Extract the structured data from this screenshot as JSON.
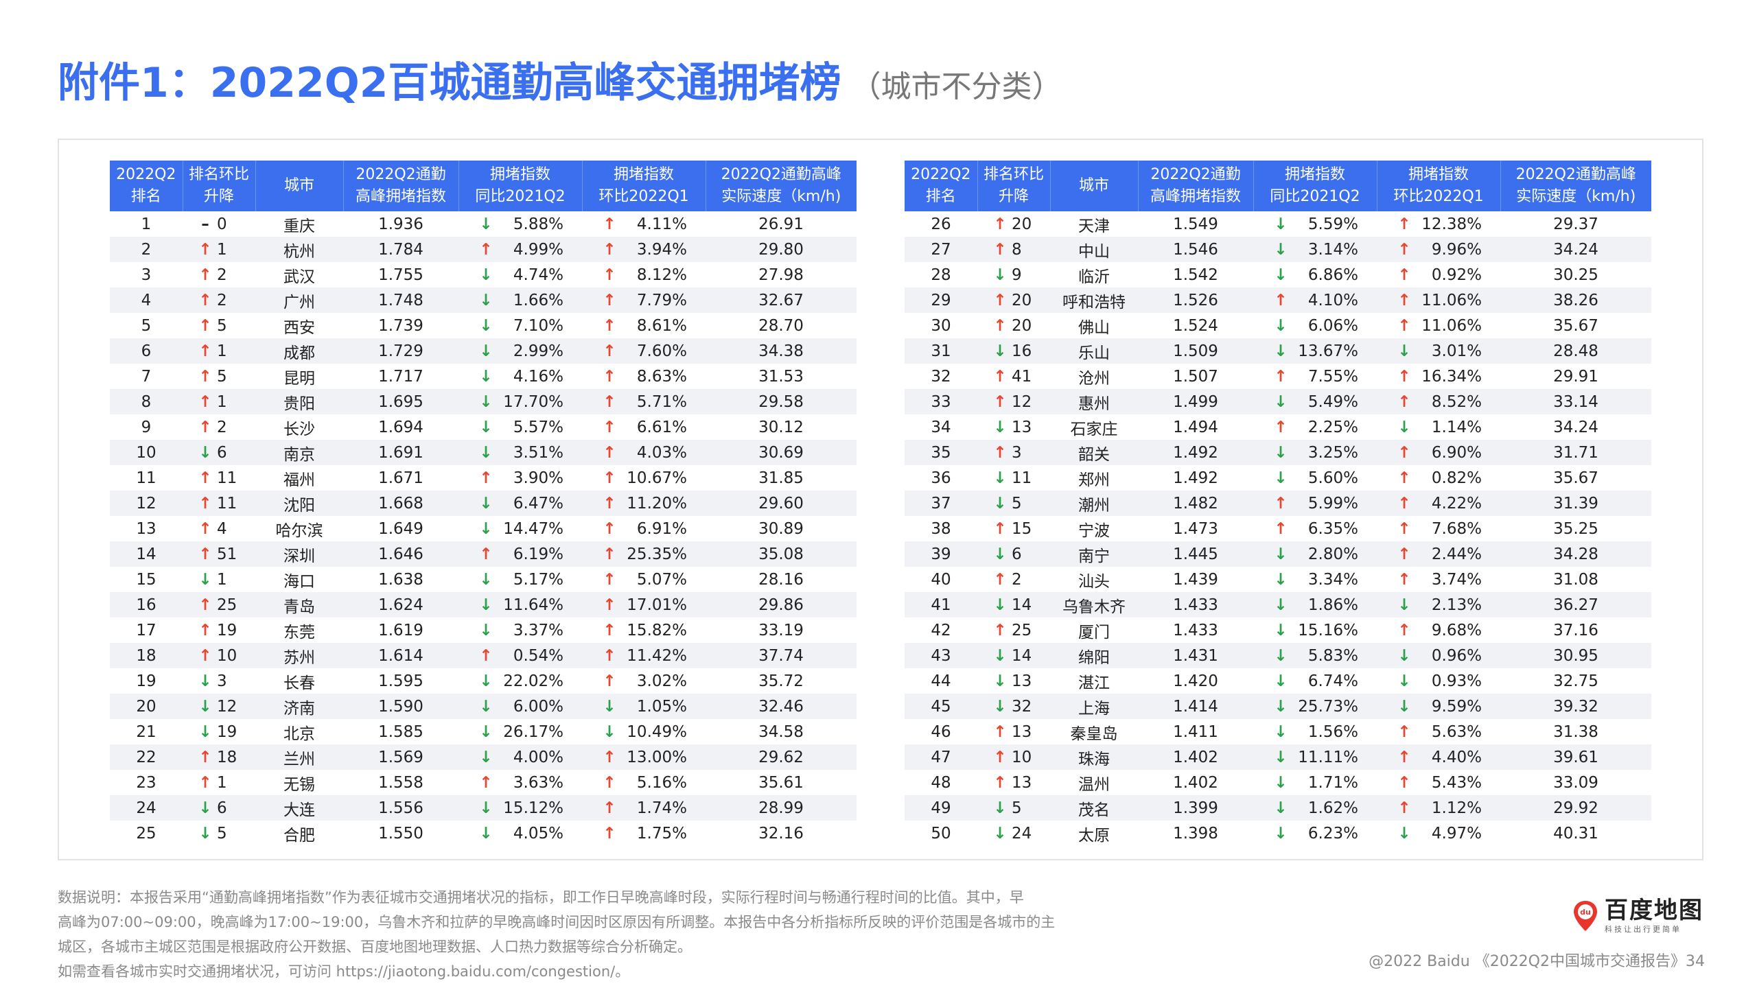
{
  "title": {
    "main": "附件1：2022Q2百城通勤高峰交通拥堵榜",
    "sub": "（城市不分类）"
  },
  "headers": [
    [
      "2022Q2",
      "排名"
    ],
    [
      "排名环比",
      "升降"
    ],
    [
      "城市"
    ],
    [
      "2022Q2通勤",
      "高峰拥堵指数"
    ],
    [
      "拥堵指数",
      "同比2021Q2"
    ],
    [
      "拥堵指数",
      "环比2022Q1"
    ],
    [
      "2022Q2通勤高峰",
      "实际速度（km/h)"
    ]
  ],
  "rows_left": [
    [
      "1",
      "flat",
      "0",
      "重庆",
      "1.936",
      "down",
      "5.88%",
      "up",
      "4.11%",
      "26.91"
    ],
    [
      "2",
      "up",
      "1",
      "杭州",
      "1.784",
      "up",
      "4.99%",
      "up",
      "3.94%",
      "29.80"
    ],
    [
      "3",
      "up",
      "2",
      "武汉",
      "1.755",
      "down",
      "4.74%",
      "up",
      "8.12%",
      "27.98"
    ],
    [
      "4",
      "up",
      "2",
      "广州",
      "1.748",
      "down",
      "1.66%",
      "up",
      "7.79%",
      "32.67"
    ],
    [
      "5",
      "up",
      "5",
      "西安",
      "1.739",
      "down",
      "7.10%",
      "up",
      "8.61%",
      "28.70"
    ],
    [
      "6",
      "up",
      "1",
      "成都",
      "1.729",
      "down",
      "2.99%",
      "up",
      "7.60%",
      "34.38"
    ],
    [
      "7",
      "up",
      "5",
      "昆明",
      "1.717",
      "down",
      "4.16%",
      "up",
      "8.63%",
      "31.53"
    ],
    [
      "8",
      "up",
      "1",
      "贵阳",
      "1.695",
      "down",
      "17.70%",
      "up",
      "5.71%",
      "29.58"
    ],
    [
      "9",
      "up",
      "2",
      "长沙",
      "1.694",
      "down",
      "5.57%",
      "up",
      "6.61%",
      "30.12"
    ],
    [
      "10",
      "down",
      "6",
      "南京",
      "1.691",
      "down",
      "3.51%",
      "up",
      "4.03%",
      "30.69"
    ],
    [
      "11",
      "up",
      "11",
      "福州",
      "1.671",
      "up",
      "3.90%",
      "up",
      "10.67%",
      "31.85"
    ],
    [
      "12",
      "up",
      "11",
      "沈阳",
      "1.668",
      "down",
      "6.47%",
      "up",
      "11.20%",
      "29.60"
    ],
    [
      "13",
      "up",
      "4",
      "哈尔滨",
      "1.649",
      "down",
      "14.47%",
      "up",
      "6.91%",
      "30.89"
    ],
    [
      "14",
      "up",
      "51",
      "深圳",
      "1.646",
      "up",
      "6.19%",
      "up",
      "25.35%",
      "35.08"
    ],
    [
      "15",
      "down",
      "1",
      "海口",
      "1.638",
      "down",
      "5.17%",
      "up",
      "5.07%",
      "28.16"
    ],
    [
      "16",
      "up",
      "25",
      "青岛",
      "1.624",
      "down",
      "11.64%",
      "up",
      "17.01%",
      "29.86"
    ],
    [
      "17",
      "up",
      "19",
      "东莞",
      "1.619",
      "down",
      "3.37%",
      "up",
      "15.82%",
      "33.19"
    ],
    [
      "18",
      "up",
      "10",
      "苏州",
      "1.614",
      "up",
      "0.54%",
      "up",
      "11.42%",
      "37.74"
    ],
    [
      "19",
      "down",
      "3",
      "长春",
      "1.595",
      "down",
      "22.02%",
      "up",
      "3.02%",
      "35.72"
    ],
    [
      "20",
      "down",
      "12",
      "济南",
      "1.590",
      "down",
      "6.00%",
      "down",
      "1.05%",
      "32.46"
    ],
    [
      "21",
      "down",
      "19",
      "北京",
      "1.585",
      "down",
      "26.17%",
      "down",
      "10.49%",
      "34.58"
    ],
    [
      "22",
      "up",
      "18",
      "兰州",
      "1.569",
      "down",
      "4.00%",
      "up",
      "13.00%",
      "29.62"
    ],
    [
      "23",
      "up",
      "1",
      "无锡",
      "1.558",
      "up",
      "3.63%",
      "up",
      "5.16%",
      "35.61"
    ],
    [
      "24",
      "down",
      "6",
      "大连",
      "1.556",
      "down",
      "15.12%",
      "up",
      "1.74%",
      "28.99"
    ],
    [
      "25",
      "down",
      "5",
      "合肥",
      "1.550",
      "down",
      "4.05%",
      "up",
      "1.75%",
      "32.16"
    ]
  ],
  "rows_right": [
    [
      "26",
      "up",
      "20",
      "天津",
      "1.549",
      "down",
      "5.59%",
      "up",
      "12.38%",
      "29.37"
    ],
    [
      "27",
      "up",
      "8",
      "中山",
      "1.546",
      "down",
      "3.14%",
      "up",
      "9.96%",
      "34.24"
    ],
    [
      "28",
      "down",
      "9",
      "临沂",
      "1.542",
      "down",
      "6.86%",
      "up",
      "0.92%",
      "30.25"
    ],
    [
      "29",
      "up",
      "20",
      "呼和浩特",
      "1.526",
      "up",
      "4.10%",
      "up",
      "11.06%",
      "38.26"
    ],
    [
      "30",
      "up",
      "20",
      "佛山",
      "1.524",
      "down",
      "6.06%",
      "up",
      "11.06%",
      "35.67"
    ],
    [
      "31",
      "down",
      "16",
      "乐山",
      "1.509",
      "down",
      "13.67%",
      "down",
      "3.01%",
      "28.48"
    ],
    [
      "32",
      "up",
      "41",
      "沧州",
      "1.507",
      "up",
      "7.55%",
      "up",
      "16.34%",
      "29.91"
    ],
    [
      "33",
      "up",
      "12",
      "惠州",
      "1.499",
      "down",
      "5.49%",
      "up",
      "8.52%",
      "33.14"
    ],
    [
      "34",
      "down",
      "13",
      "石家庄",
      "1.494",
      "up",
      "2.25%",
      "down",
      "1.14%",
      "34.24"
    ],
    [
      "35",
      "up",
      "3",
      "韶关",
      "1.492",
      "down",
      "3.25%",
      "up",
      "6.90%",
      "31.71"
    ],
    [
      "36",
      "down",
      "11",
      "郑州",
      "1.492",
      "down",
      "5.60%",
      "up",
      "0.82%",
      "35.67"
    ],
    [
      "37",
      "down",
      "5",
      "潮州",
      "1.482",
      "up",
      "5.99%",
      "up",
      "4.22%",
      "31.39"
    ],
    [
      "38",
      "up",
      "15",
      "宁波",
      "1.473",
      "up",
      "6.35%",
      "up",
      "7.68%",
      "35.25"
    ],
    [
      "39",
      "down",
      "6",
      "南宁",
      "1.445",
      "down",
      "2.80%",
      "up",
      "2.44%",
      "34.28"
    ],
    [
      "40",
      "up",
      "2",
      "汕头",
      "1.439",
      "down",
      "3.34%",
      "up",
      "3.74%",
      "31.08"
    ],
    [
      "41",
      "down",
      "14",
      "乌鲁木齐",
      "1.433",
      "down",
      "1.86%",
      "down",
      "2.13%",
      "36.27"
    ],
    [
      "42",
      "up",
      "25",
      "厦门",
      "1.433",
      "down",
      "15.16%",
      "up",
      "9.68%",
      "37.16"
    ],
    [
      "43",
      "down",
      "14",
      "绵阳",
      "1.431",
      "down",
      "5.83%",
      "down",
      "0.96%",
      "30.95"
    ],
    [
      "44",
      "down",
      "13",
      "湛江",
      "1.420",
      "down",
      "6.74%",
      "down",
      "0.93%",
      "32.75"
    ],
    [
      "45",
      "down",
      "32",
      "上海",
      "1.414",
      "down",
      "25.73%",
      "down",
      "9.59%",
      "39.32"
    ],
    [
      "46",
      "up",
      "13",
      "秦皇岛",
      "1.411",
      "down",
      "1.56%",
      "up",
      "5.63%",
      "31.38"
    ],
    [
      "47",
      "up",
      "10",
      "珠海",
      "1.402",
      "down",
      "11.11%",
      "up",
      "4.40%",
      "39.61"
    ],
    [
      "48",
      "up",
      "13",
      "温州",
      "1.402",
      "down",
      "1.71%",
      "up",
      "5.43%",
      "33.09"
    ],
    [
      "49",
      "down",
      "5",
      "茂名",
      "1.399",
      "down",
      "1.62%",
      "up",
      "1.12%",
      "29.92"
    ],
    [
      "50",
      "down",
      "24",
      "太原",
      "1.398",
      "down",
      "6.23%",
      "down",
      "4.97%",
      "40.31"
    ]
  ],
  "arrows": {
    "up": "↑",
    "down": "↓",
    "flat": "–"
  },
  "colors": {
    "header_bg": "#3b6fee",
    "up": "#e8462f",
    "down": "#2aa14a",
    "title": "#3a6ff0"
  },
  "note_lines": [
    "数据说明：本报告采用“通勤高峰拥堵指数”作为表征城市交通拥堵状况的指标，即工作日早晚高峰时段，实际行程时间与畅通行程时间的比值。其中，早",
    "高峰为07:00~09:00，晚高峰为17:00~19:00，乌鲁木齐和拉萨的早晚高峰时间因时区原因有所调整。本报告中各分析指标所反映的评价范围是各城市的主",
    "城区，各城市主城区范围是根据政府公开数据、百度地图地理数据、人口热力数据等综合分析确定。",
    "如需查看各城市实时交通拥堵状况，可访问 https://jiaotong.baidu.com/congestion/。"
  ],
  "logo": {
    "pin_text": "du",
    "name": "百度地图",
    "slogan": "科技让出行更简单"
  },
  "footer": "@2022 Baidu 《2022Q2中国城市交通报告》34"
}
